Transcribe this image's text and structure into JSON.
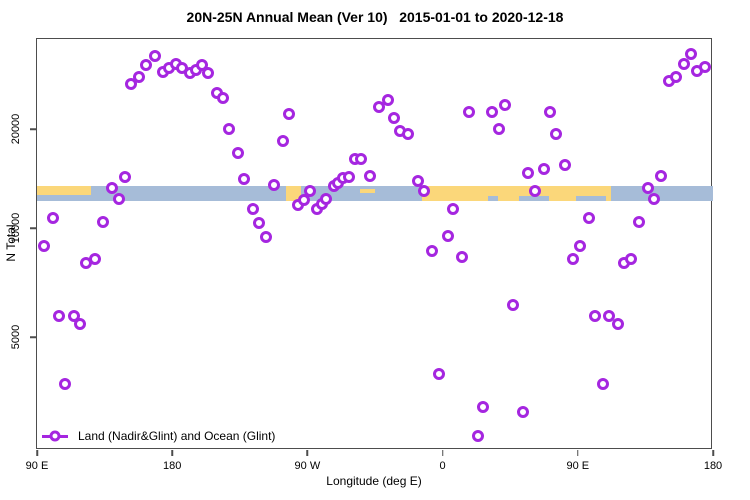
{
  "title": "20N-25N Annual Mean (Ver 10)   2015-01-01 to 2020-12-18",
  "legend": {
    "label": "Land (Nadir&Glint) and Ocean (Glint)"
  },
  "colors": {
    "marker": "#a526e0",
    "ocean_band": "#a6bcd8",
    "land_band": "#fbd77a",
    "axis": "#4d4d4d",
    "text": "#000000"
  },
  "chart_data": {
    "type": "scatter",
    "title": "20N-25N Annual Mean (Ver 10)   2015-01-01 to 2020-12-18",
    "xlabel": "Longitude (deg E)",
    "ylabel": "N Total",
    "y_scale": "log",
    "x_axis_note": "axis runs eastward from 90E around the globe to 180 (axis degrees 90 to 540)",
    "grid": false,
    "legend_position": "bottom-left inside plot",
    "y_ticks": [
      {
        "label": "20000",
        "value": 20000
      },
      {
        "label": "10000",
        "value": 10000
      },
      {
        "label": "5000",
        "value": 5000
      }
    ],
    "x_ticks": [
      {
        "label": "90 E",
        "axis_deg": 90
      },
      {
        "label": "180",
        "axis_deg": 180
      },
      {
        "label": "90 W",
        "axis_deg": 270
      },
      {
        "label": "0",
        "axis_deg": 360
      },
      {
        "label": "90 E",
        "axis_deg": 450
      },
      {
        "label": "180",
        "axis_deg": 540
      }
    ],
    "series": [
      {
        "name": "Land (Nadir&Glint) and Ocean (Glint)",
        "marker": "open-circle",
        "color": "#a526e0",
        "points_format": [
          "axis_deg_east_from_90E",
          "N_total"
        ],
        "points": [
          [
            95,
            8900
          ],
          [
            101,
            10700
          ],
          [
            105,
            5700
          ],
          [
            109,
            3700
          ],
          [
            115,
            5700
          ],
          [
            119,
            5400
          ],
          [
            123,
            8000
          ],
          [
            129,
            8200
          ],
          [
            134,
            10400
          ],
          [
            140,
            13200
          ],
          [
            145,
            12200
          ],
          [
            149,
            14200
          ],
          [
            153,
            27400
          ],
          [
            158,
            28600
          ],
          [
            163,
            31100
          ],
          [
            169,
            33300
          ],
          [
            174,
            29800
          ],
          [
            178,
            30500
          ],
          [
            183,
            31500
          ],
          [
            187,
            30500
          ],
          [
            192,
            29400
          ],
          [
            196,
            30200
          ],
          [
            200,
            31100
          ],
          [
            204,
            29600
          ],
          [
            210,
            25700
          ],
          [
            214,
            24700
          ],
          [
            218,
            20000
          ],
          [
            224,
            16900
          ],
          [
            228,
            14000
          ],
          [
            234,
            11400
          ],
          [
            238,
            10300
          ],
          [
            243,
            9400
          ],
          [
            248,
            13500
          ],
          [
            254,
            18300
          ],
          [
            258,
            22200
          ],
          [
            264,
            11700
          ],
          [
            268,
            12100
          ],
          [
            272,
            12900
          ],
          [
            277,
            11400
          ],
          [
            280,
            11800
          ],
          [
            283,
            12200
          ],
          [
            288,
            13400
          ],
          [
            291,
            13700
          ],
          [
            294,
            14100
          ],
          [
            298,
            14200
          ],
          [
            302,
            16200
          ],
          [
            306,
            16200
          ],
          [
            312,
            14300
          ],
          [
            318,
            23300
          ],
          [
            324,
            24500
          ],
          [
            328,
            21600
          ],
          [
            332,
            19700
          ],
          [
            337,
            19200
          ],
          [
            344,
            13800
          ],
          [
            348,
            12900
          ],
          [
            353,
            8600
          ],
          [
            358,
            3950
          ],
          [
            364,
            9500
          ],
          [
            367,
            11400
          ],
          [
            373,
            8300
          ],
          [
            378,
            22500
          ],
          [
            384,
            2650
          ],
          [
            387,
            3200
          ],
          [
            393,
            22500
          ],
          [
            398,
            19900
          ],
          [
            402,
            23500
          ],
          [
            407,
            6100
          ],
          [
            414,
            3100
          ],
          [
            417,
            14600
          ],
          [
            422,
            12900
          ],
          [
            428,
            15100
          ],
          [
            432,
            22400
          ],
          [
            436,
            19200
          ],
          [
            442,
            15500
          ],
          [
            447,
            8200
          ],
          [
            452,
            8900
          ],
          [
            458,
            10700
          ],
          [
            462,
            5700
          ],
          [
            467,
            3700
          ],
          [
            471,
            5700
          ],
          [
            477,
            5400
          ],
          [
            481,
            8000
          ],
          [
            486,
            8200
          ],
          [
            491,
            10400
          ],
          [
            497,
            13200
          ],
          [
            501,
            12200
          ],
          [
            506,
            14300
          ],
          [
            511,
            27800
          ],
          [
            516,
            28600
          ],
          [
            521,
            31500
          ],
          [
            526,
            33600
          ],
          [
            530,
            30000
          ],
          [
            535,
            30700
          ]
        ]
      }
    ],
    "map_band": {
      "description": "horizontal land/ocean map strip of the 20N-25N latitude belt drawn across the plot near N=12500",
      "ocean_color": "#a6bcd8",
      "land_color": "#fbd77a",
      "segments": [
        {
          "from": 90,
          "to": 540,
          "type": "ocean",
          "layer": "base"
        },
        {
          "from": 90,
          "to": 126,
          "type": "land",
          "layer": "top-half"
        },
        {
          "from": 256,
          "to": 266,
          "type": "land",
          "layer": "full"
        },
        {
          "from": 305,
          "to": 315,
          "type": "land",
          "layer": "sliver"
        },
        {
          "from": 346,
          "to": 472,
          "type": "land",
          "layer": "full"
        },
        {
          "from": 390,
          "to": 397,
          "type": "ocean",
          "layer": "bottom-third"
        },
        {
          "from": 411,
          "to": 431,
          "type": "ocean",
          "layer": "bottom-third"
        },
        {
          "from": 449,
          "to": 469,
          "type": "ocean",
          "layer": "bottom-third"
        }
      ]
    }
  }
}
